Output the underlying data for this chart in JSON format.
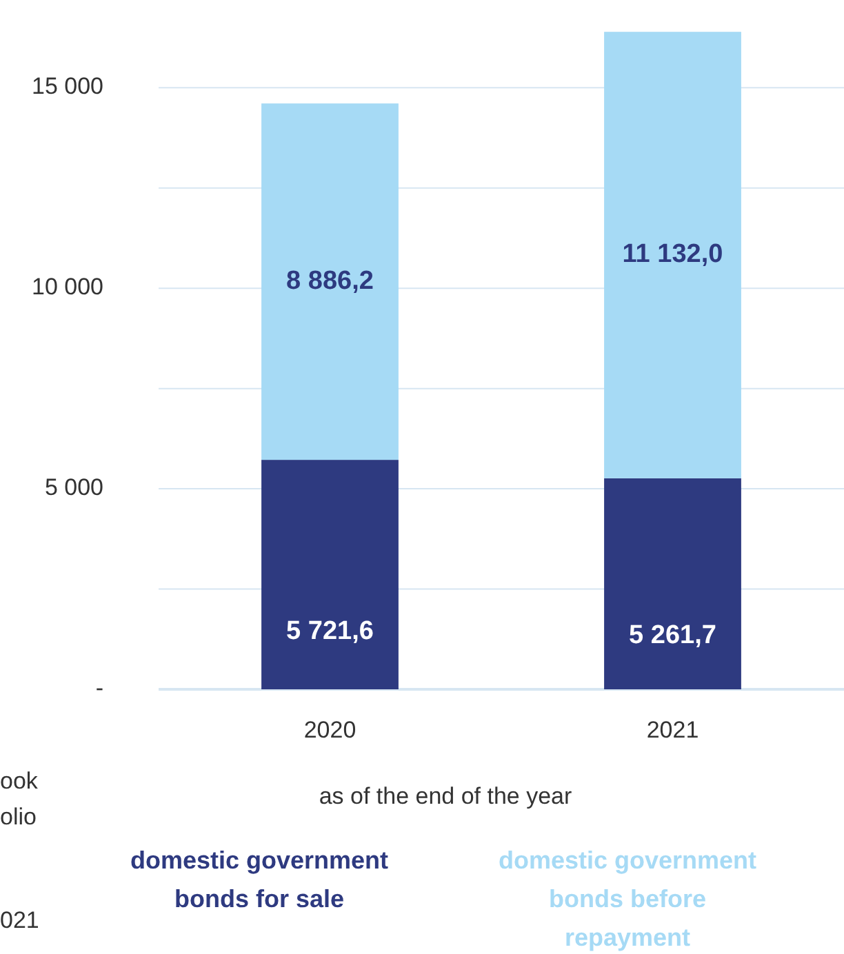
{
  "chart_data": {
    "type": "bar",
    "stacked": true,
    "categories": [
      "2020",
      "2021"
    ],
    "series": [
      {
        "name": "domestic government bonds for sale",
        "color": "#2e3a80",
        "values": [
          5721.6,
          5261.7
        ],
        "value_labels": [
          "5 721,6",
          "5 261,7"
        ]
      },
      {
        "name": "domestic government bonds before repayment",
        "color": "#a6daf5",
        "values": [
          8886.2,
          11132.0
        ],
        "value_labels": [
          "8 886,2",
          "11 132,0"
        ]
      }
    ],
    "ylim": [
      0,
      16500
    ],
    "yticks": [
      {
        "value": 0,
        "label": "-"
      },
      {
        "value": 2500,
        "label": null
      },
      {
        "value": 5000,
        "label": "5 000"
      },
      {
        "value": 7500,
        "label": null
      },
      {
        "value": 10000,
        "label": "10 000"
      },
      {
        "value": 12500,
        "label": null
      },
      {
        "value": 15000,
        "label": "15 000"
      }
    ],
    "grid": "y",
    "xlabel": "as of the end of the year",
    "legend": "bottom",
    "annotations": [
      "ook",
      "olio",
      "021"
    ]
  }
}
